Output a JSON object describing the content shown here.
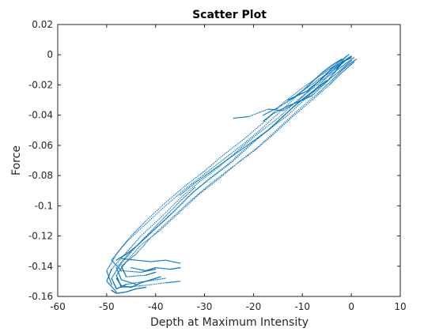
{
  "chart_data": {
    "type": "scatter",
    "title": "Scatter Plot",
    "xlabel": "Depth at Maximum Intensity",
    "ylabel": "Force",
    "xlim": [
      -60,
      10
    ],
    "ylim": [
      -0.16,
      0.02
    ],
    "xticks": [
      -60,
      -50,
      -40,
      -30,
      -20,
      -10,
      0,
      10
    ],
    "xtick_labels": [
      "-60",
      "-50",
      "-40",
      "-30",
      "-20",
      "-10",
      "0",
      "10"
    ],
    "yticks": [
      0.02,
      0,
      -0.02,
      -0.04,
      -0.06,
      -0.08,
      -0.1,
      -0.12,
      -0.14,
      -0.16
    ],
    "ytick_labels": [
      "0.02",
      "0",
      "-0.02",
      "-0.04",
      "-0.06",
      "-0.08",
      "-0.1",
      "-0.12",
      "-0.14",
      "-0.16"
    ],
    "grid": false,
    "box": true,
    "marker_color": "#0072BD",
    "series": [
      {
        "x": [
          0.5,
          -2,
          -5,
          -8,
          -12,
          -16,
          -20,
          -24,
          -28,
          -32,
          -36,
          -40,
          -44,
          -47,
          -49,
          -48,
          -46,
          -42,
          -38
        ],
        "y": [
          -0.002,
          -0.008,
          -0.015,
          -0.025,
          -0.035,
          -0.047,
          -0.058,
          -0.07,
          -0.08,
          -0.09,
          -0.103,
          -0.115,
          -0.127,
          -0.138,
          -0.148,
          -0.155,
          -0.152,
          -0.15,
          -0.148
        ]
      },
      {
        "x": [
          -0.5,
          -3,
          -6,
          -10,
          -14,
          -18,
          -22,
          -26,
          -30,
          -34,
          -38,
          -42,
          -45,
          -48,
          -50,
          -49
        ],
        "y": [
          0,
          -0.006,
          -0.013,
          -0.022,
          -0.032,
          -0.045,
          -0.056,
          -0.066,
          -0.077,
          -0.087,
          -0.098,
          -0.11,
          -0.12,
          -0.132,
          -0.143,
          -0.152
        ]
      },
      {
        "x": [
          0,
          -2.5,
          -5.5,
          -9,
          -13,
          -17,
          -21,
          -25,
          -29,
          -33,
          -37,
          -41,
          -45,
          -48,
          -47,
          -44
        ],
        "y": [
          -0.004,
          -0.011,
          -0.019,
          -0.028,
          -0.04,
          -0.05,
          -0.06,
          -0.072,
          -0.082,
          -0.093,
          -0.106,
          -0.118,
          -0.13,
          -0.141,
          -0.149,
          -0.152
        ]
      },
      {
        "x": [
          1,
          -1.5,
          -4,
          -7,
          -11,
          -15,
          -19,
          -23,
          -27,
          -31,
          -35,
          -39,
          -43,
          -46,
          -48,
          -47,
          -43,
          -38,
          -35
        ],
        "y": [
          -0.003,
          -0.009,
          -0.017,
          -0.026,
          -0.037,
          -0.049,
          -0.061,
          -0.071,
          -0.082,
          -0.092,
          -0.104,
          -0.116,
          -0.126,
          -0.137,
          -0.146,
          -0.154,
          -0.153,
          -0.151,
          -0.15
        ]
      },
      {
        "x": [
          -1,
          -3.5,
          -7,
          -11,
          -15,
          -19,
          -23,
          -27,
          -31,
          -35,
          -39,
          -43,
          -46,
          -49,
          -50,
          -48
        ],
        "y": [
          -0.001,
          -0.01,
          -0.02,
          -0.03,
          -0.042,
          -0.052,
          -0.063,
          -0.074,
          -0.084,
          -0.095,
          -0.108,
          -0.12,
          -0.131,
          -0.142,
          -0.15,
          -0.157
        ]
      },
      {
        "x": [
          0.5,
          -2,
          -4.5,
          -8,
          -12,
          -16,
          -20,
          -25,
          -29,
          -33,
          -37,
          -41,
          -44,
          -47,
          -46,
          -42,
          -40
        ],
        "y": [
          -0.005,
          -0.012,
          -0.02,
          -0.03,
          -0.041,
          -0.053,
          -0.064,
          -0.076,
          -0.086,
          -0.097,
          -0.109,
          -0.121,
          -0.132,
          -0.14,
          -0.147,
          -0.146,
          -0.144
        ]
      },
      {
        "x": [
          -0.5,
          -3,
          -6.5,
          -10,
          -14,
          -18,
          -22,
          -26,
          -30,
          -34,
          -38,
          -42,
          -46,
          -49,
          -47,
          -43,
          -40
        ],
        "y": [
          -0.002,
          -0.009,
          -0.016,
          -0.024,
          -0.036,
          -0.048,
          -0.059,
          -0.069,
          -0.079,
          -0.089,
          -0.1,
          -0.112,
          -0.124,
          -0.136,
          -0.143,
          -0.144,
          -0.142
        ]
      },
      {
        "x": [
          0,
          -1,
          -2,
          -5,
          -8,
          -11,
          -14,
          -17,
          -21,
          -24
        ],
        "y": [
          -0.001,
          -0.003,
          -0.006,
          -0.012,
          -0.022,
          -0.031,
          -0.037,
          -0.036,
          -0.041,
          -0.042
        ]
      },
      {
        "x": [
          -1.5,
          -3,
          -5,
          -8,
          -10,
          -13,
          -16,
          -18
        ],
        "y": [
          -0.004,
          -0.01,
          -0.018,
          -0.027,
          -0.03,
          -0.034,
          -0.039,
          -0.044
        ]
      },
      {
        "x": [
          0,
          -2,
          -4,
          -6,
          -8,
          -9,
          -11,
          -13
        ],
        "y": [
          -0.002,
          -0.005,
          -0.009,
          -0.016,
          -0.021,
          -0.024,
          -0.027,
          -0.03
        ]
      },
      {
        "x": [
          -2,
          -4,
          -6,
          -8,
          -10,
          -12,
          -15,
          -18
        ],
        "y": [
          -0.003,
          -0.007,
          -0.012,
          -0.018,
          -0.024,
          -0.029,
          -0.035,
          -0.04
        ]
      },
      {
        "x": [
          -5,
          -7,
          -9,
          -11,
          -13,
          -15,
          -17,
          -20,
          -23,
          -26,
          -29,
          -32,
          -35
        ],
        "y": [
          -0.017,
          -0.022,
          -0.027,
          -0.032,
          -0.038,
          -0.044,
          -0.05,
          -0.057,
          -0.064,
          -0.071,
          -0.078,
          -0.085,
          -0.093
        ]
      },
      {
        "x": [
          -32,
          -35,
          -38,
          -41,
          -44,
          -46,
          -48
        ],
        "y": [
          -0.088,
          -0.097,
          -0.107,
          -0.117,
          -0.127,
          -0.132,
          -0.136
        ]
      },
      {
        "x": [
          -47,
          -44,
          -41,
          -38,
          -35
        ],
        "y": [
          -0.135,
          -0.136,
          -0.137,
          -0.136,
          -0.138
        ]
      },
      {
        "x": [
          -48,
          -47,
          -45,
          -43,
          -41,
          -39
        ],
        "y": [
          -0.148,
          -0.153,
          -0.154,
          -0.151,
          -0.149,
          -0.147
        ]
      },
      {
        "x": [
          -49,
          -48,
          -46,
          -44,
          -42
        ],
        "y": [
          -0.156,
          -0.158,
          -0.157,
          -0.155,
          -0.154
        ]
      },
      {
        "x": [
          -45,
          -42,
          -40,
          -37,
          -35
        ],
        "y": [
          -0.141,
          -0.143,
          -0.141,
          -0.142,
          -0.141
        ]
      }
    ]
  }
}
